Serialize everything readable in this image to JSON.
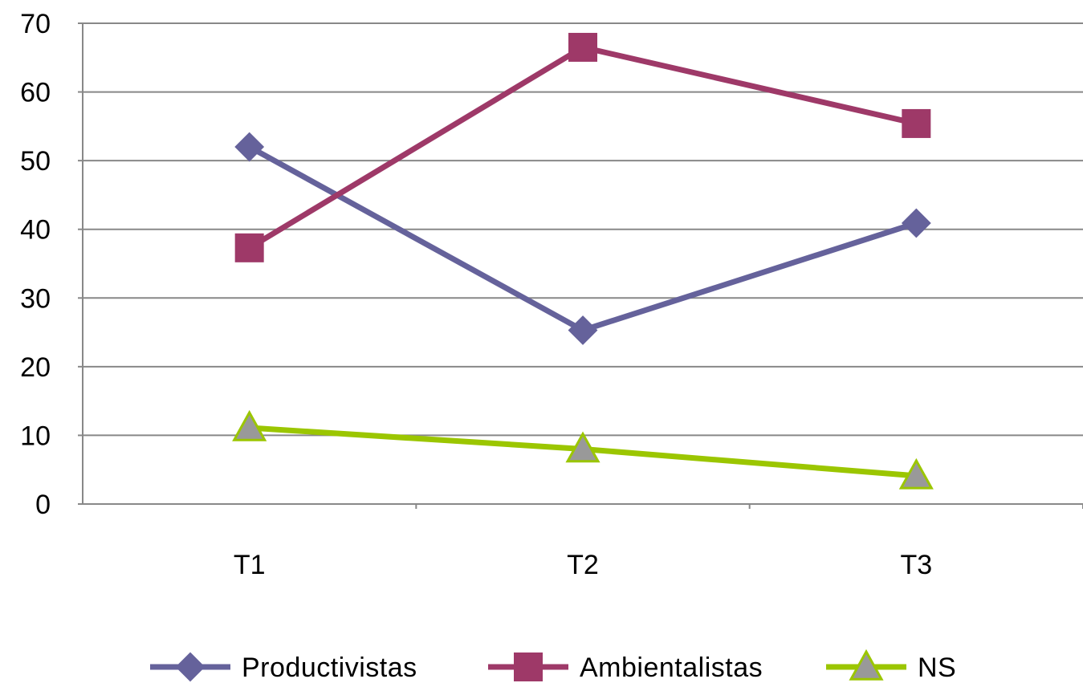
{
  "chart_data": {
    "type": "line",
    "categories": [
      "T1",
      "T2",
      "T3"
    ],
    "ylim": [
      0,
      70
    ],
    "yticks": [
      0,
      10,
      20,
      30,
      40,
      50,
      60,
      70
    ],
    "grid": true,
    "legend_position": "bottom",
    "title": "",
    "xlabel": "",
    "ylabel": "",
    "series": [
      {
        "name": "Productivistas",
        "values": [
          52,
          25.3,
          40.9
        ],
        "color": "#65629b",
        "marker": "diamond"
      },
      {
        "name": "Ambientalistas",
        "values": [
          37.3,
          66.5,
          55.4
        ],
        "color": "#9e3968",
        "marker": "square"
      },
      {
        "name": "NS",
        "values": [
          11.1,
          8,
          4.1
        ],
        "color": "#9bc600",
        "marker": "triangle",
        "marker_fill": "#999999"
      }
    ]
  }
}
